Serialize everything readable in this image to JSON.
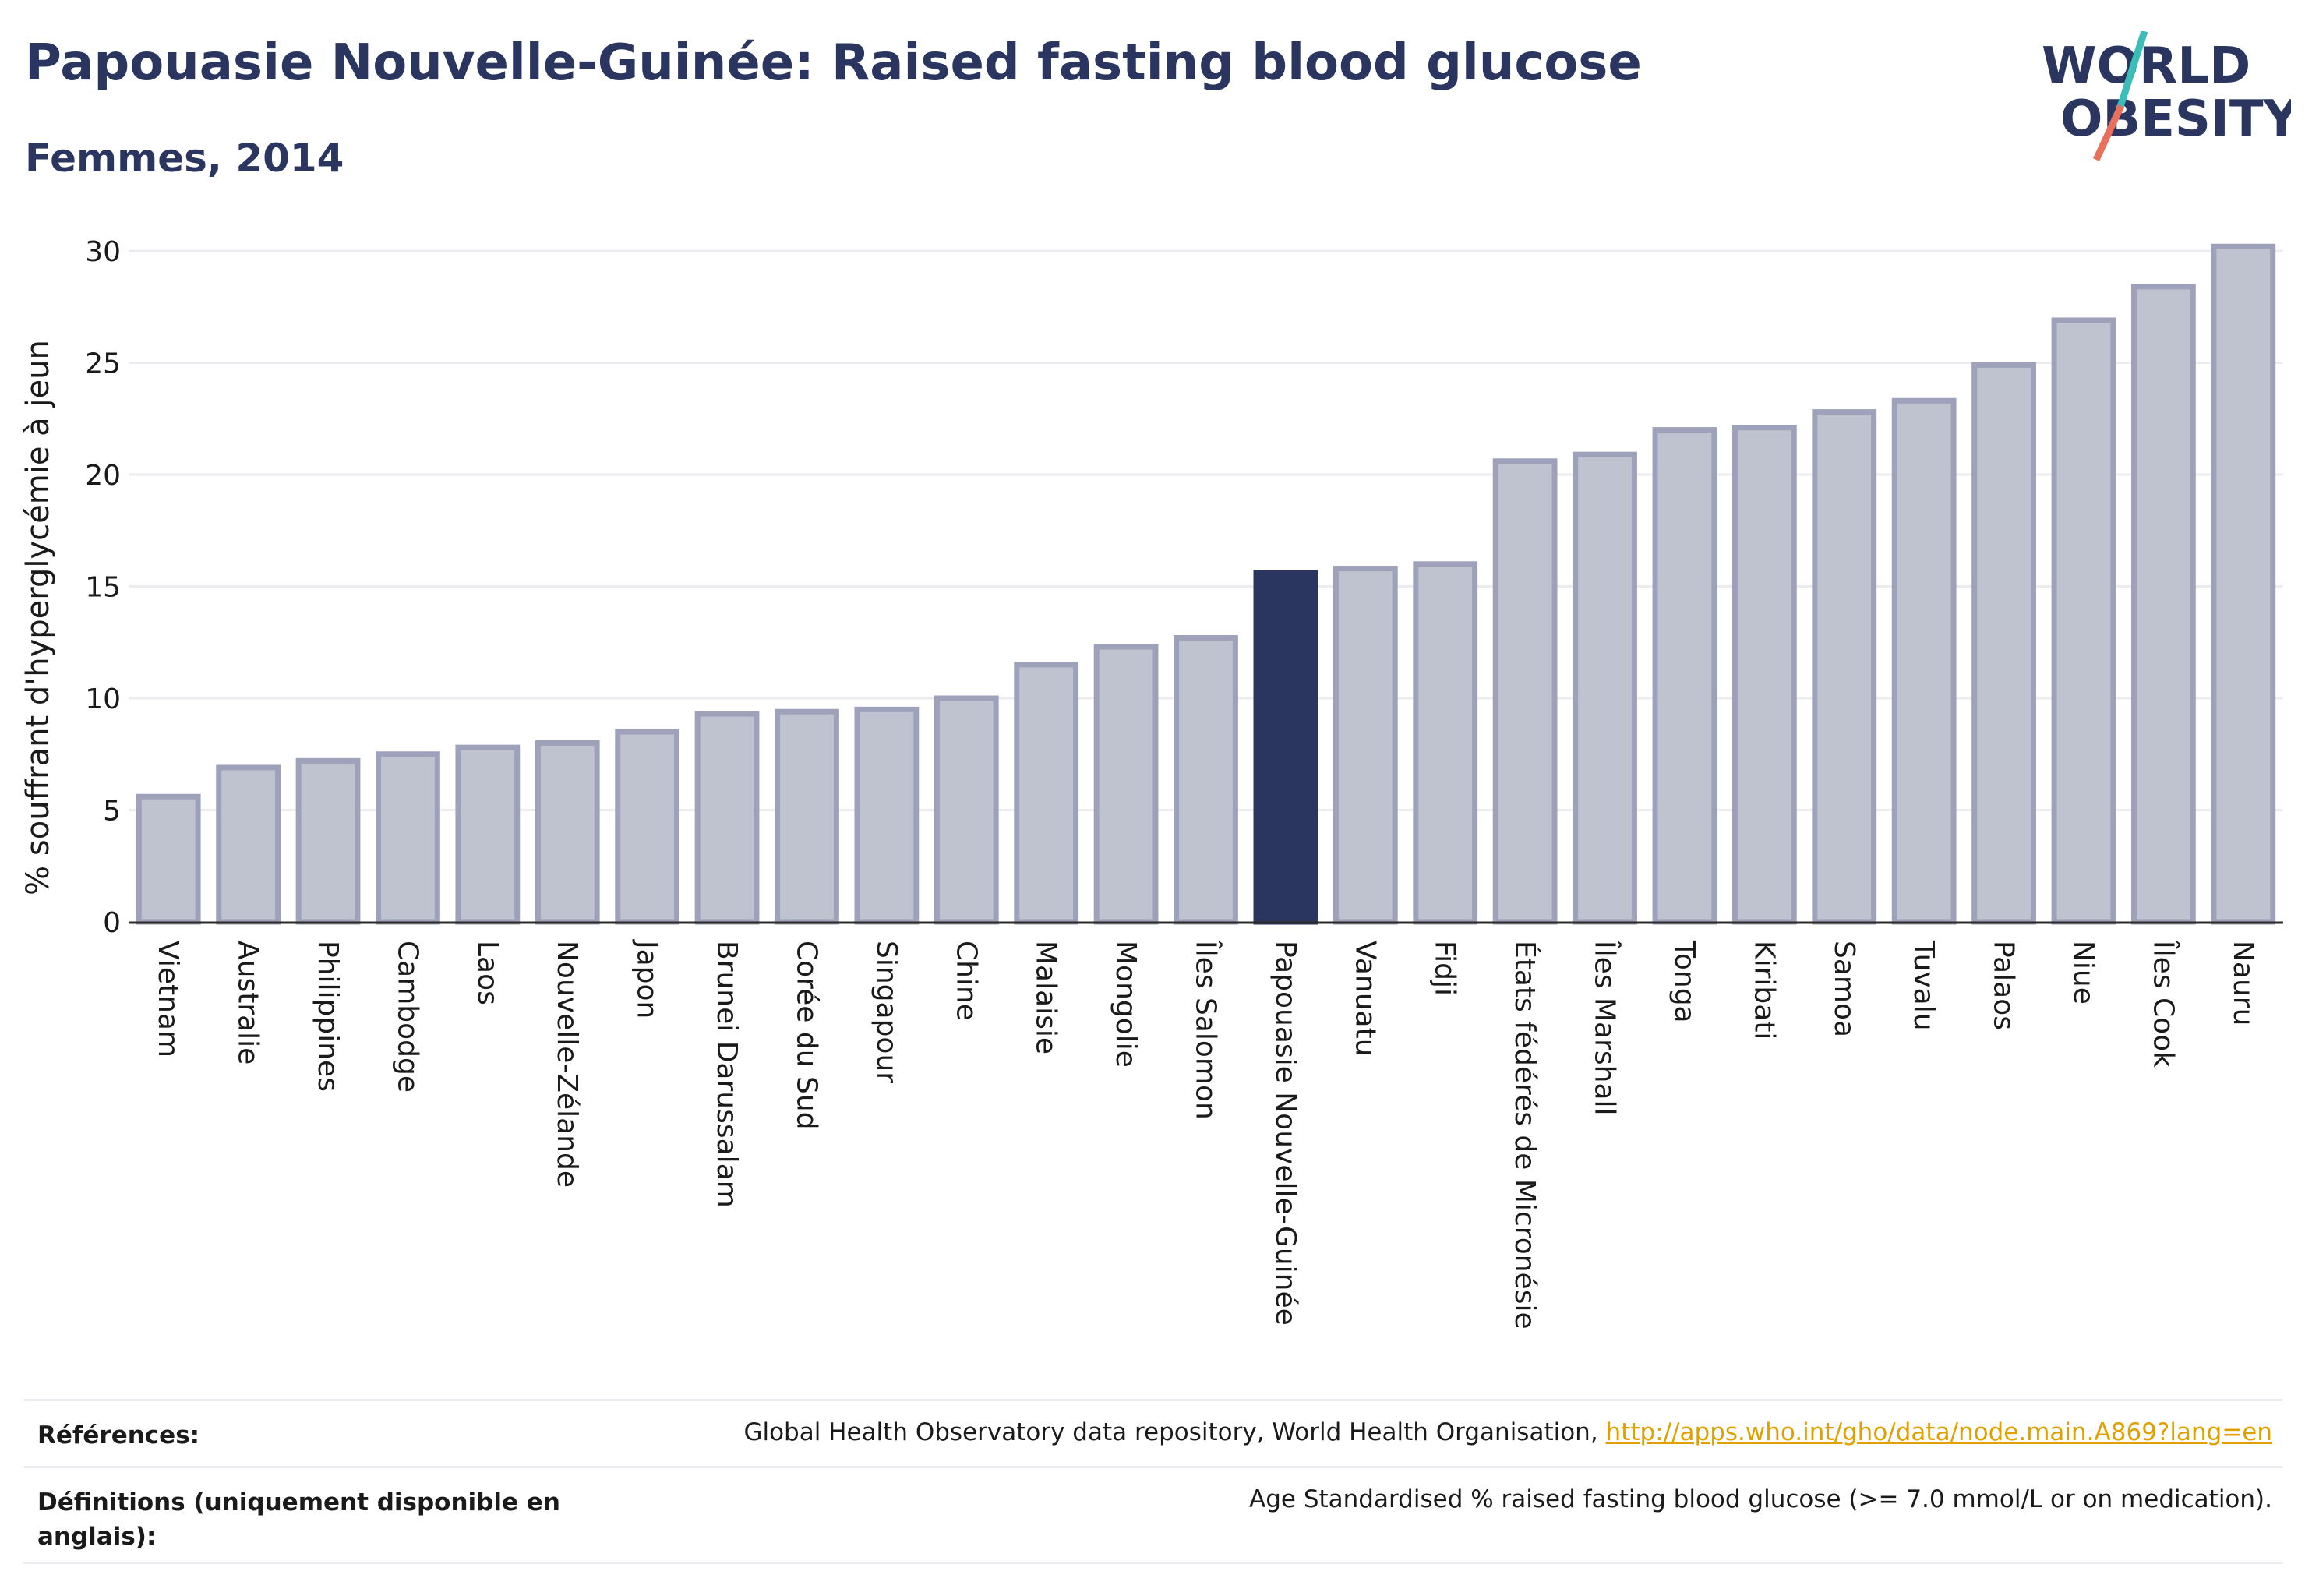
{
  "header": {
    "title": "Papouasie Nouvelle-Guinée: Raised fasting blood glucose",
    "subtitle": "Femmes, 2014"
  },
  "logo": {
    "line1": "WORLD",
    "line2": "OBESITY",
    "colors": {
      "text": "#2a3560",
      "slash_teal": "#3dbdb8",
      "slash_coral": "#e8705c"
    }
  },
  "chart_data": {
    "type": "bar",
    "ylabel": "% souffrant d'hyperglycémie à jeun",
    "xlabel": "",
    "ylim": [
      0,
      30
    ],
    "yticks": [
      0,
      5,
      10,
      15,
      20,
      25,
      30
    ],
    "grid": true,
    "highlight_category": "Papouasie Nouvelle-Guinée",
    "colors": {
      "bar": "#bfc2cf",
      "bar_border": "#9da2ba",
      "highlight": "#2a3560",
      "grid": "#ececf0",
      "axis": "#2a2a2a"
    },
    "categories": [
      "Vietnam",
      "Australie",
      "Philippines",
      "Cambodge",
      "Laos",
      "Nouvelle-Zélande",
      "Japon",
      "Brunei Darussalam",
      "Corée du Sud",
      "Singapour",
      "Chine",
      "Malaisie",
      "Mongolie",
      "Îles Salomon",
      "Papouasie Nouvelle-Guinée",
      "Vanuatu",
      "Fidji",
      "États fédérés de Micronésie",
      "Îles Marshall",
      "Tonga",
      "Kiribati",
      "Samoa",
      "Tuvalu",
      "Palaos",
      "Niue",
      "Îles Cook",
      "Nauru"
    ],
    "values": [
      5.6,
      6.9,
      7.2,
      7.5,
      7.8,
      8.0,
      8.5,
      9.3,
      9.4,
      9.5,
      10.0,
      11.5,
      12.3,
      12.7,
      15.6,
      15.8,
      16.0,
      20.6,
      20.9,
      22.0,
      22.1,
      22.8,
      23.3,
      24.9,
      26.9,
      28.4,
      30.2
    ]
  },
  "references": {
    "label": "Références:",
    "source_text": "Global Health Observatory data repository, World Health Organisation, ",
    "source_link": "http://apps.who.int/gho/data/node.main.A869?lang=en"
  },
  "definitions": {
    "label": "Définitions (uniquement disponible en anglais):",
    "text": "Age Standardised % raised fasting blood glucose (>= 7.0 mmol/L or on medication)."
  }
}
